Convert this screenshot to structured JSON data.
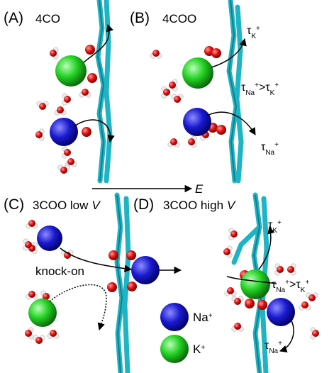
{
  "panels": [
    {
      "label": "(A)",
      "title": "4CO"
    },
    {
      "label": "(B)",
      "title": "4COO",
      "annotations": [
        {
          "symbol": "τ",
          "sub": "K",
          "sup": "+"
        },
        {
          "left": {
            "symbol": "τ",
            "sub": "Na",
            "sup": "+"
          },
          "relation": ">",
          "right": {
            "symbol": "τ",
            "sub": "K",
            "sup": "+"
          }
        },
        {
          "symbol": "τ",
          "sub": "Na",
          "sup": "+"
        }
      ]
    },
    {
      "label": "(C)",
      "title": "3COO low",
      "title_italic": "V",
      "annotations": [
        {
          "text": "knock-on"
        }
      ]
    },
    {
      "label": "(D)",
      "title": "3COO high",
      "title_italic": "V",
      "annotations": [
        {
          "symbol": "τ",
          "sub": "K",
          "sup": "+"
        },
        {
          "left": {
            "symbol": "τ",
            "sub": "Na",
            "sup": "+"
          },
          "relation": ">",
          "right": {
            "symbol": "τ",
            "sub": "K",
            "sup": "+"
          }
        },
        {
          "symbol": "τ",
          "sub": "Na",
          "sup": "+"
        }
      ]
    }
  ],
  "field_arrow": {
    "label": "E"
  },
  "legend": [
    {
      "ion": "Na",
      "sup": "+"
    },
    {
      "ion": "K",
      "sup": "+"
    }
  ]
}
